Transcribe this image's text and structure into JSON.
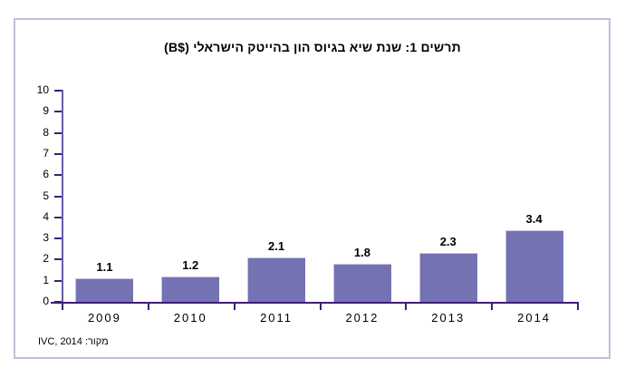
{
  "chart_data": {
    "type": "bar",
    "title": "תרשים 1: שנת שיא בגיוס הון בהייטק הישראלי ($B)",
    "categories": [
      "2009",
      "2010",
      "2011",
      "2012",
      "2013",
      "2014"
    ],
    "values": [
      1.1,
      1.2,
      2.1,
      1.8,
      2.3,
      3.4
    ],
    "value_labels": [
      "1.1",
      "1.2",
      "2.1",
      "1.8",
      "2.3",
      "3.4"
    ],
    "xlabel": "",
    "ylabel": "",
    "ylim": [
      0,
      10
    ],
    "yticks": [
      0,
      1,
      2,
      3,
      4,
      5,
      6,
      7,
      8,
      9,
      10
    ],
    "grid": false,
    "legend": false,
    "source_note": "מקור: IVC, 2014",
    "colors": {
      "bar_fill": "#7472b2",
      "bar_highlight": "#c9c7e3",
      "x_axis": "#3d1e78",
      "y_axis": "#6a5ba8",
      "frame_border": "#c1bedb",
      "text": "#000000",
      "background": "#ffffff"
    }
  }
}
